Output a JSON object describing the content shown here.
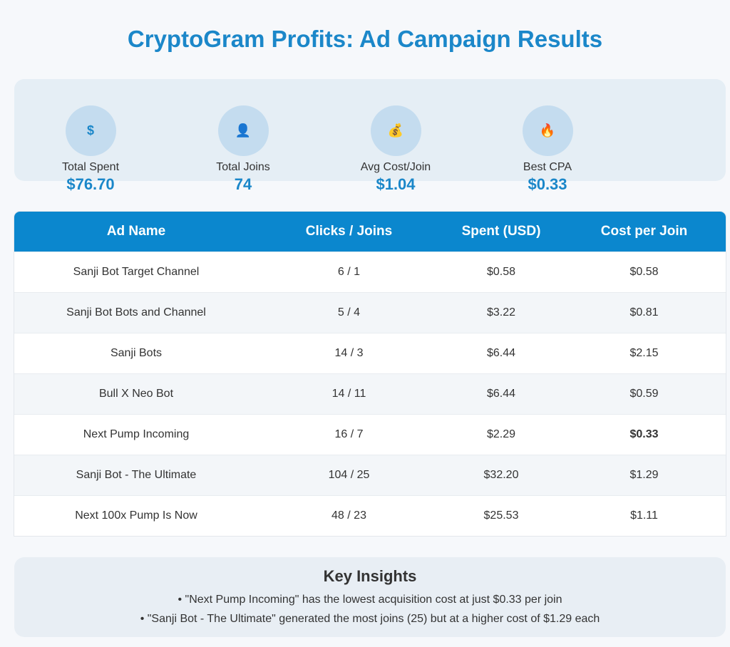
{
  "title": "CryptoGram Profits: Ad Campaign Results",
  "stats": [
    {
      "icon": "dollar-icon",
      "glyph": "$",
      "label": "Total Spent",
      "value": "$76.70"
    },
    {
      "icon": "user-icon",
      "glyph": "👤",
      "label": "Total Joins",
      "value": "74"
    },
    {
      "icon": "money-bag-icon",
      "glyph": "💰",
      "label": "Avg Cost/Join",
      "value": "$1.04"
    },
    {
      "icon": "fire-icon",
      "glyph": "🔥",
      "label": "Best CPA",
      "value": "$0.33"
    }
  ],
  "table": {
    "headers": [
      "Ad Name",
      "Clicks / Joins",
      "Spent (USD)",
      "Cost per Join"
    ],
    "rows": [
      {
        "name": "Sanji Bot Target Channel",
        "clicks_joins": "6 / 1",
        "spent": "$0.58",
        "cpj": "$0.58"
      },
      {
        "name": "Sanji Bot Bots and Channel",
        "clicks_joins": "5 / 4",
        "spent": "$3.22",
        "cpj": "$0.81"
      },
      {
        "name": "Sanji Bots",
        "clicks_joins": "14 / 3",
        "spent": "$6.44",
        "cpj": "$2.15"
      },
      {
        "name": "Bull X Neo Bot",
        "clicks_joins": "14 / 11",
        "spent": "$6.44",
        "cpj": "$0.59"
      },
      {
        "name": "Next Pump Incoming",
        "clicks_joins": "16 / 7",
        "spent": "$2.29",
        "cpj": "$0.33"
      },
      {
        "name": "Sanji Bot - The Ultimate",
        "clicks_joins": "104 / 25",
        "spent": "$32.20",
        "cpj": "$1.29"
      },
      {
        "name": "Next 100x Pump Is Now",
        "clicks_joins": "48 / 23",
        "spent": "$25.53",
        "cpj": "$1.11"
      }
    ]
  },
  "insights": {
    "title": "Key Insights",
    "items": [
      "• \"Next Pump Incoming\" has the lowest acquisition cost at just $0.33 per join",
      "• \"Sanji Bot - The Ultimate\" generated the most joins (25) but at a higher cost of $1.29 each"
    ]
  }
}
